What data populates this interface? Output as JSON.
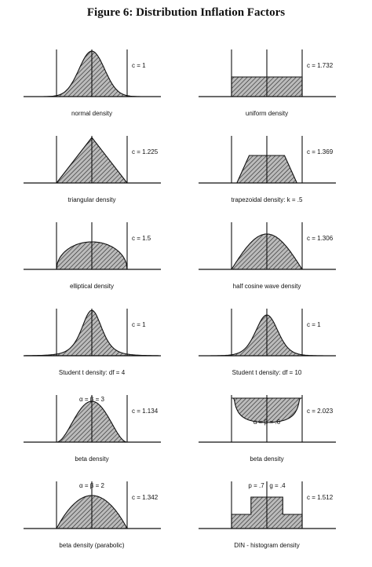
{
  "title": "Figure 6:  Distribution Inflation Factors",
  "panels": [
    {
      "label": "normal density",
      "c": "c = 1"
    },
    {
      "label": "uniform density",
      "c": "c = 1.732"
    },
    {
      "label": "triangular density",
      "c": "c = 1.225"
    },
    {
      "label": "trapezoidal density: k = .5",
      "c": "c = 1.369"
    },
    {
      "label": "elliptical density",
      "c": "c = 1.5"
    },
    {
      "label": "half cosine wave density",
      "c": "c = 1.306"
    },
    {
      "label": "Student t density:  df = 4",
      "c": "c =  1"
    },
    {
      "label": "Student t density:  df = 10",
      "c": "c =  1"
    },
    {
      "label": "beta density",
      "c": "c = 1.134",
      "note": "α = β = 3"
    },
    {
      "label": "beta density",
      "c": "c = 2.023",
      "note": "α = β = .6"
    },
    {
      "label": "beta density (parabolic)",
      "c": "c = 1.342",
      "note": "α = β = 2"
    },
    {
      "label": "DIN - histogram density",
      "c": "c = 1.512",
      "note": "p = .7 ,   g = .4"
    }
  ]
}
